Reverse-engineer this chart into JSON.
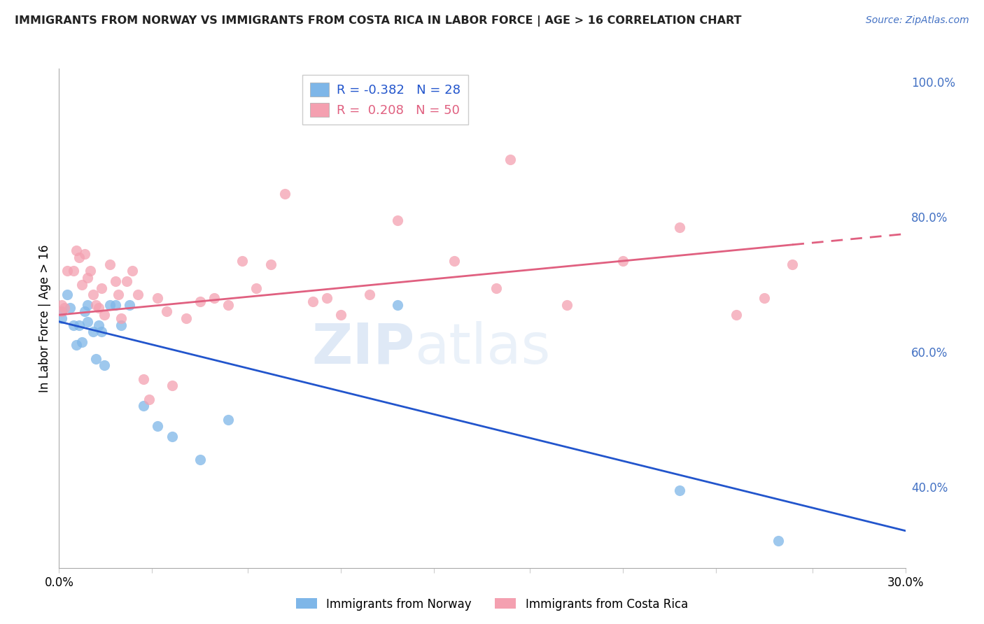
{
  "title": "IMMIGRANTS FROM NORWAY VS IMMIGRANTS FROM COSTA RICA IN LABOR FORCE | AGE > 16 CORRELATION CHART",
  "source": "Source: ZipAtlas.com",
  "ylabel": "In Labor Force | Age > 16",
  "xlim": [
    0.0,
    0.3
  ],
  "ylim": [
    0.28,
    1.02
  ],
  "ytick_values": [
    0.4,
    0.6,
    0.8,
    1.0
  ],
  "xtick_values": [
    0.0,
    0.033,
    0.067,
    0.1,
    0.133,
    0.167,
    0.2,
    0.233,
    0.267,
    0.3
  ],
  "norway_R": -0.382,
  "norway_N": 28,
  "costa_rica_R": 0.208,
  "costa_rica_N": 50,
  "norway_color": "#7EB6E8",
  "costa_rica_color": "#F4A0B0",
  "trend_norway_color": "#2255CC",
  "trend_costa_rica_color": "#E06080",
  "norway_x": [
    0.001,
    0.001,
    0.003,
    0.004,
    0.005,
    0.006,
    0.007,
    0.008,
    0.009,
    0.01,
    0.01,
    0.012,
    0.013,
    0.014,
    0.015,
    0.016,
    0.018,
    0.02,
    0.022,
    0.025,
    0.03,
    0.035,
    0.04,
    0.05,
    0.06,
    0.12,
    0.22,
    0.255
  ],
  "norway_y": [
    0.66,
    0.65,
    0.685,
    0.665,
    0.64,
    0.61,
    0.64,
    0.615,
    0.66,
    0.67,
    0.645,
    0.63,
    0.59,
    0.64,
    0.63,
    0.58,
    0.67,
    0.67,
    0.64,
    0.67,
    0.52,
    0.49,
    0.475,
    0.44,
    0.5,
    0.67,
    0.395,
    0.32
  ],
  "costa_rica_x": [
    0.001,
    0.001,
    0.002,
    0.003,
    0.005,
    0.006,
    0.007,
    0.008,
    0.009,
    0.01,
    0.011,
    0.012,
    0.013,
    0.014,
    0.015,
    0.016,
    0.018,
    0.02,
    0.021,
    0.022,
    0.024,
    0.026,
    0.028,
    0.03,
    0.032,
    0.035,
    0.038,
    0.04,
    0.045,
    0.05,
    0.055,
    0.06,
    0.065,
    0.07,
    0.075,
    0.08,
    0.09,
    0.095,
    0.1,
    0.11,
    0.12,
    0.14,
    0.155,
    0.16,
    0.18,
    0.2,
    0.22,
    0.24,
    0.25,
    0.26
  ],
  "costa_rica_y": [
    0.67,
    0.66,
    0.665,
    0.72,
    0.72,
    0.75,
    0.74,
    0.7,
    0.745,
    0.71,
    0.72,
    0.685,
    0.67,
    0.665,
    0.695,
    0.655,
    0.73,
    0.705,
    0.685,
    0.65,
    0.705,
    0.72,
    0.685,
    0.56,
    0.53,
    0.68,
    0.66,
    0.55,
    0.65,
    0.675,
    0.68,
    0.67,
    0.735,
    0.695,
    0.73,
    0.835,
    0.675,
    0.68,
    0.655,
    0.685,
    0.795,
    0.735,
    0.695,
    0.885,
    0.67,
    0.735,
    0.785,
    0.655,
    0.68,
    0.73
  ],
  "trend_norway_x0": 0.0,
  "trend_norway_x1": 0.3,
  "trend_norway_y0": 0.645,
  "trend_norway_y1": 0.335,
  "trend_cr_x0": 0.0,
  "trend_cr_x1": 0.3,
  "trend_cr_y0": 0.655,
  "trend_cr_y1": 0.775,
  "trend_cr_solid_end": 0.26,
  "watermark_zip": "ZIP",
  "watermark_atlas": "atlas",
  "legend_norway_label": "Immigrants from Norway",
  "legend_costa_rica_label": "Immigrants from Costa Rica",
  "background_color": "#FFFFFF",
  "grid_color": "#CCCCCC",
  "right_axis_color": "#4472C4",
  "title_color": "#222222",
  "source_color": "#4472C4"
}
